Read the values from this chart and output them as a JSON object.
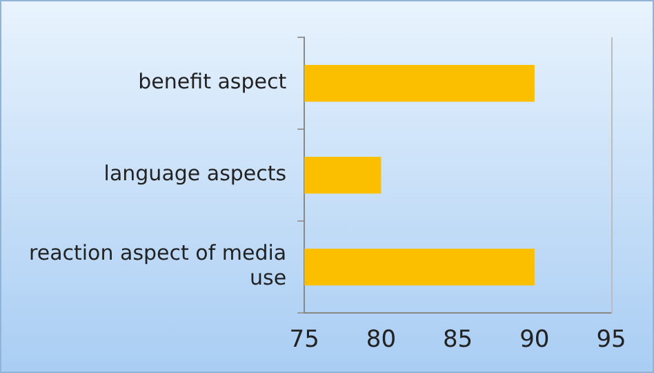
{
  "chart_data": {
    "type": "bar",
    "orientation": "horizontal",
    "categories": [
      "benefit aspect",
      "language aspects",
      "reaction aspect of media use"
    ],
    "values": [
      90,
      80,
      90
    ],
    "color": "#fbbf00",
    "xlim": [
      75,
      95
    ],
    "xticks": [
      75,
      80,
      85,
      90,
      95
    ],
    "grid": false,
    "legend": false
  }
}
